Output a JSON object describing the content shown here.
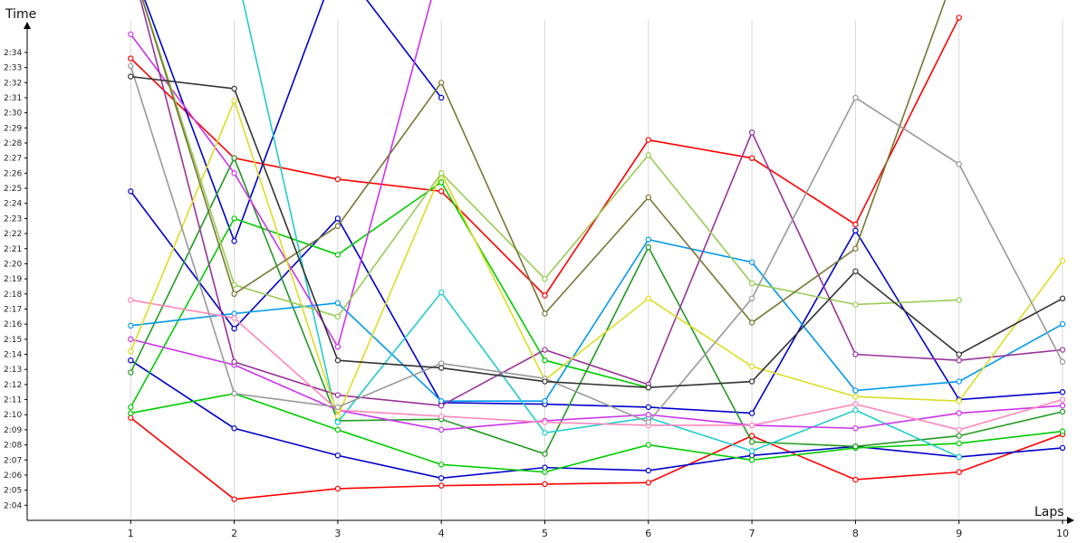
{
  "chart_data": {
    "type": "line",
    "title": "",
    "xlabel": "Laps",
    "ylabel": "Time",
    "x": [
      1,
      2,
      3,
      4,
      5,
      6,
      7,
      8,
      9,
      10
    ],
    "xlim": [
      0,
      10
    ],
    "ylim": [
      "2:03",
      "2:36"
    ],
    "y_tick_labels": [
      "2:04",
      "2:05",
      "2:06",
      "2:07",
      "2:08",
      "2:09",
      "2:10",
      "2:11",
      "2:12",
      "2:13",
      "2:14",
      "2:15",
      "2:16",
      "2:17",
      "2:18",
      "2:19",
      "2:20",
      "2:21",
      "2:22",
      "2:23",
      "2:24",
      "2:25",
      "2:26",
      "2:27",
      "2:28",
      "2:29",
      "2:30",
      "2:31",
      "2:32",
      "2:33",
      "2:34"
    ],
    "grid": true,
    "legend": "none",
    "series": [
      {
        "color": "#ff0000",
        "values": [
          "2:09.8",
          "2:04.4",
          "2:05.1",
          "2:05.3",
          "2:05.4",
          "2:05.5",
          "2:08.6",
          "2:05.7",
          "2:06.2",
          "2:08.7"
        ]
      },
      {
        "color": "#ff0000",
        "values": [
          "2:33.6",
          "2:27.0",
          "2:25.6",
          "2:24.8",
          "2:17.9",
          "2:28.2",
          "2:27.0",
          "2:22.6",
          "2:36.3",
          null
        ]
      },
      {
        "color": "#0000cc",
        "values": [
          "2:13.6",
          "2:09.1",
          "2:07.3",
          "2:05.8",
          "2:06.5",
          "2:06.3",
          "2:07.3",
          "2:07.9",
          "2:07.2",
          "2:07.8"
        ]
      },
      {
        "color": "#0000cc",
        "values": [
          "2:24.8",
          "2:15.7",
          "2:23.0",
          "2:10.8",
          "2:10.7",
          "2:10.5",
          "2:10.1",
          "2:22.2",
          "2:11.0",
          "2:11.5"
        ]
      },
      {
        "color": "#0000cc",
        "values": [
          "2:40.0",
          "2:21.5",
          "2:40.0",
          null,
          null,
          null,
          null,
          null,
          null,
          null
        ]
      },
      {
        "color": "#0000cc",
        "values": [
          null,
          null,
          "2:40.0",
          "2:31.0",
          null,
          null,
          null,
          null,
          null,
          null
        ]
      },
      {
        "color": "#00cc00",
        "values": [
          "2:10.1",
          "2:11.4",
          "2:09.0",
          "2:06.7",
          "2:06.2",
          "2:08.0",
          "2:07.0",
          "2:07.8",
          "2:08.1",
          "2:08.9"
        ]
      },
      {
        "color": "#00cc00",
        "values": [
          "2:10.5",
          "2:23.0",
          "2:20.6",
          "2:25.4",
          "2:13.6",
          "2:11.8",
          null,
          null,
          null,
          null
        ]
      },
      {
        "color": "#229922",
        "values": [
          "2:12.8",
          "2:27.0",
          "2:09.6",
          "2:09.7",
          "2:07.4",
          "2:21.1",
          "2:08.2",
          "2:07.9",
          "2:08.6",
          "2:10.2"
        ]
      },
      {
        "color": "#0099ee",
        "values": [
          "2:15.9",
          "2:16.7",
          "2:17.4",
          "2:10.9",
          "2:10.9",
          "2:21.6",
          "2:20.1",
          "2:11.6",
          "2:12.2",
          "2:16.0"
        ]
      },
      {
        "color": "#22cccc",
        "values": [
          null,
          null,
          "2:09.5",
          "2:18.1",
          "2:08.8",
          "2:09.8",
          "2:07.6",
          "2:10.3",
          "2:07.2",
          null
        ]
      },
      {
        "color": "#22cccc",
        "values": [
          null,
          "2:40.0",
          "2:09.5",
          null,
          null,
          null,
          null,
          null,
          null,
          null
        ]
      },
      {
        "color": "#cc33ee",
        "values": [
          "2:15.0",
          "2:13.3",
          "2:10.3",
          "2:09.0",
          "2:09.6",
          "2:10.0",
          "2:09.3",
          "2:09.1",
          "2:10.1",
          "2:10.6"
        ]
      },
      {
        "color": "#cc33ee",
        "values": [
          "2:35.2",
          "2:26.0",
          "2:14.5",
          "2:40.0",
          null,
          null,
          null,
          null,
          null,
          null
        ]
      },
      {
        "color": "#993399",
        "values": [
          "2:40.0",
          "2:13.5",
          "2:11.3",
          "2:10.6",
          "2:14.3",
          "2:12.0",
          "2:28.7",
          "2:14.0",
          "2:13.6",
          "2:14.3"
        ]
      },
      {
        "color": "#ff88bb",
        "values": [
          "2:17.6",
          "2:16.4",
          "2:10.3",
          "2:09.9",
          "2:09.5",
          "2:09.3",
          "2:09.3",
          "2:10.7",
          "2:09.0",
          "2:11.0"
        ]
      },
      {
        "color": "#dddd22",
        "values": [
          "2:14.2",
          "2:30.8",
          "2:09.9",
          "2:26.0",
          "2:12.3",
          "2:17.7",
          "2:13.2",
          "2:11.2",
          "2:10.9",
          "2:20.2"
        ]
      },
      {
        "color": "#99cc55",
        "values": [
          "2:40.0",
          "2:18.6",
          "2:16.5",
          "2:26.0",
          "2:19.0",
          "2:27.2",
          "2:18.7",
          "2:17.3",
          "2:17.6",
          null
        ]
      },
      {
        "color": "#777733",
        "values": [
          "2:40.0",
          "2:18.0",
          "2:22.5",
          "2:32.0",
          "2:16.7",
          "2:24.4",
          "2:16.1",
          "2:21.0",
          "2:40.0",
          null
        ]
      },
      {
        "color": "#999999",
        "values": [
          "2:33.1",
          "2:11.4",
          "2:10.5",
          "2:13.4",
          "2:12.4",
          "2:09.5",
          "2:17.7",
          "2:31.0",
          "2:26.6",
          "2:13.5"
        ]
      },
      {
        "color": "#333333",
        "values": [
          "2:32.4",
          "2:31.6",
          "2:13.6",
          "2:13.1",
          "2:12.2",
          "2:11.8",
          "2:12.2",
          "2:19.5",
          "2:14.0",
          "2:17.7"
        ]
      }
    ]
  }
}
